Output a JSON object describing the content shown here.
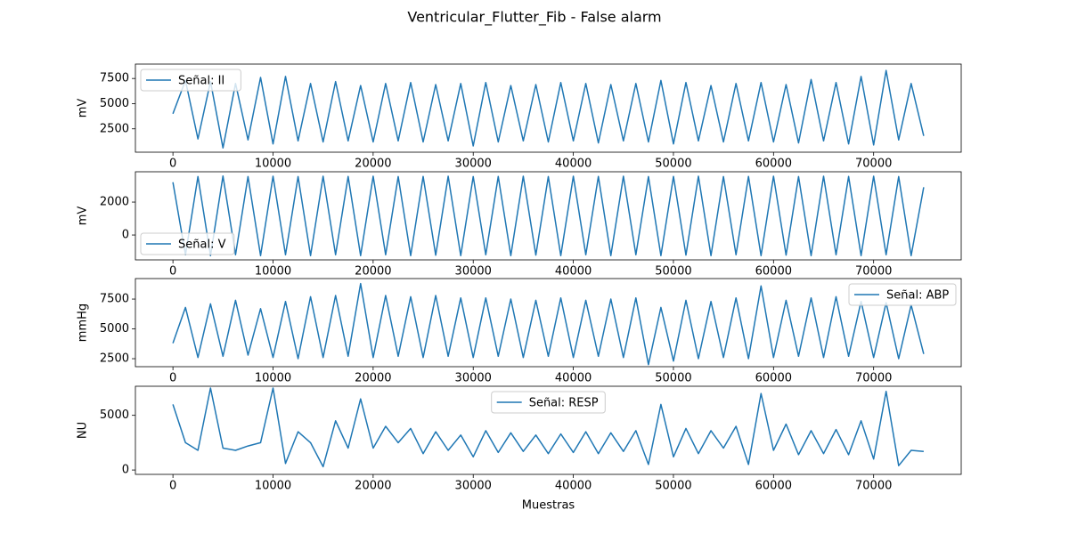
{
  "title": "Ventricular_Flutter_Fib - False alarm",
  "chart_data": [
    {
      "type": "line",
      "ylabel": "mV",
      "legend": "upper left",
      "grid": false,
      "xlim": [
        -3750,
        78750
      ],
      "xticks": [
        0,
        10000,
        20000,
        30000,
        40000,
        50000,
        60000,
        70000
      ],
      "ylim": [
        180,
        8930
      ],
      "yticks": [
        2500,
        5000,
        7500
      ],
      "x": [
        0,
        1250,
        2500,
        3750,
        5000,
        6250,
        7500,
        8750,
        10000,
        11250,
        12500,
        13750,
        15000,
        16250,
        17500,
        18750,
        20000,
        21250,
        22500,
        23750,
        25000,
        26250,
        27500,
        28750,
        30000,
        31250,
        32500,
        33750,
        35000,
        36250,
        37500,
        38750,
        40000,
        41250,
        42500,
        43750,
        45000,
        46250,
        47500,
        48750,
        50000,
        51250,
        52500,
        53750,
        55000,
        56250,
        57500,
        58750,
        60000,
        61250,
        62500,
        63750,
        65000,
        66250,
        67500,
        68750,
        70000,
        71250,
        72500,
        73750,
        75000
      ],
      "series": [
        {
          "name": "Señal: II",
          "color": "#1f77b4",
          "values": [
            4000,
            7300,
            1500,
            7200,
            600,
            7000,
            1400,
            7600,
            1000,
            7700,
            1300,
            7000,
            1200,
            7200,
            1300,
            6800,
            1200,
            7000,
            1300,
            7100,
            1200,
            6900,
            1300,
            7000,
            800,
            7100,
            1200,
            6800,
            1300,
            6900,
            1200,
            7100,
            1300,
            7000,
            1100,
            6900,
            1300,
            7000,
            1200,
            7300,
            1000,
            7100,
            1300,
            6800,
            1200,
            7000,
            1300,
            7100,
            1200,
            6900,
            1100,
            7400,
            1300,
            7100,
            1000,
            7700,
            900,
            8300,
            1400,
            7000,
            1800
          ]
        }
      ]
    },
    {
      "type": "line",
      "ylabel": "mV",
      "legend": "lower left",
      "grid": false,
      "xlim": [
        -3750,
        78750
      ],
      "xticks": [
        0,
        10000,
        20000,
        30000,
        40000,
        50000,
        60000,
        70000
      ],
      "ylim": [
        -1510,
        3840
      ],
      "yticks": [
        0,
        2000
      ],
      "x": [
        0,
        1250,
        2500,
        3750,
        5000,
        6250,
        7500,
        8750,
        10000,
        11250,
        12500,
        13750,
        15000,
        16250,
        17500,
        18750,
        20000,
        21250,
        22500,
        23750,
        25000,
        26250,
        27500,
        28750,
        30000,
        31250,
        32500,
        33750,
        35000,
        36250,
        37500,
        38750,
        40000,
        41250,
        42500,
        43750,
        45000,
        46250,
        47500,
        48750,
        50000,
        51250,
        52500,
        53750,
        55000,
        56250,
        57500,
        58750,
        60000,
        61250,
        62500,
        63750,
        65000,
        66250,
        67500,
        68750,
        70000,
        71250,
        72500,
        73750,
        75000
      ],
      "series": [
        {
          "name": "Señal: V",
          "color": "#1f77b4",
          "values": [
            3200,
            -1200,
            3550,
            -1250,
            3580,
            -1200,
            3550,
            -1250,
            3570,
            -1200,
            3550,
            -1250,
            3570,
            -1200,
            3560,
            -1250,
            3570,
            -1200,
            3550,
            -1250,
            3560,
            -1230,
            3570,
            -1250,
            3550,
            -1200,
            3560,
            -1250,
            3570,
            -1220,
            3550,
            -1250,
            3570,
            -1200,
            3560,
            -1250,
            3570,
            -1200,
            3550,
            -1250,
            3560,
            -1220,
            3570,
            -1250,
            3550,
            -1200,
            3560,
            -1250,
            3570,
            -1220,
            3550,
            -1250,
            3570,
            -1200,
            3560,
            -1250,
            3570,
            -1200,
            3550,
            -1250,
            2900
          ]
        }
      ]
    },
    {
      "type": "line",
      "ylabel": "mmHg",
      "legend": "upper right",
      "grid": false,
      "xlim": [
        -3750,
        78750
      ],
      "xticks": [
        0,
        10000,
        20000,
        30000,
        40000,
        50000,
        60000,
        70000
      ],
      "ylim": [
        1830,
        9220
      ],
      "yticks": [
        2500,
        5000,
        7500
      ],
      "x": [
        0,
        1250,
        2500,
        3750,
        5000,
        6250,
        7500,
        8750,
        10000,
        11250,
        12500,
        13750,
        15000,
        16250,
        17500,
        18750,
        20000,
        21250,
        22500,
        23750,
        25000,
        26250,
        27500,
        28750,
        30000,
        31250,
        32500,
        33750,
        35000,
        36250,
        37500,
        38750,
        40000,
        41250,
        42500,
        43750,
        45000,
        46250,
        47500,
        48750,
        50000,
        51250,
        52500,
        53750,
        55000,
        56250,
        57500,
        58750,
        60000,
        61250,
        62500,
        63750,
        65000,
        66250,
        67500,
        68750,
        70000,
        71250,
        72500,
        73750,
        75000
      ],
      "series": [
        {
          "name": "Señal: ABP",
          "color": "#1f77b4",
          "values": [
            3800,
            6800,
            2600,
            7100,
            2700,
            7400,
            2800,
            6700,
            2600,
            7300,
            2500,
            7700,
            2600,
            7800,
            2700,
            8800,
            2600,
            7800,
            2700,
            7700,
            2600,
            7800,
            2700,
            7600,
            2600,
            7600,
            2700,
            7500,
            2600,
            7400,
            2700,
            7600,
            2600,
            7400,
            2700,
            7500,
            2600,
            7600,
            2000,
            6800,
            2300,
            7400,
            2500,
            7300,
            2600,
            7600,
            2500,
            8600,
            2600,
            7400,
            2700,
            7600,
            2600,
            7700,
            2700,
            7300,
            2600,
            7200,
            2500,
            7000,
            2900
          ]
        }
      ]
    },
    {
      "type": "line",
      "ylabel": "NU",
      "xlabel": "Muestras",
      "legend": "upper center",
      "grid": false,
      "xlim": [
        -3750,
        78750
      ],
      "xticks": [
        0,
        10000,
        20000,
        30000,
        40000,
        50000,
        60000,
        70000
      ],
      "ylim": [
        -400,
        7660
      ],
      "yticks": [
        0,
        5000
      ],
      "x": [
        0,
        1250,
        2500,
        3750,
        5000,
        6250,
        7500,
        8750,
        10000,
        11250,
        12500,
        13750,
        15000,
        16250,
        17500,
        18750,
        20000,
        21250,
        22500,
        23750,
        25000,
        26250,
        27500,
        28750,
        30000,
        31250,
        32500,
        33750,
        35000,
        36250,
        37500,
        38750,
        40000,
        41250,
        42500,
        43750,
        45000,
        46250,
        47500,
        48750,
        50000,
        51250,
        52500,
        53750,
        55000,
        56250,
        57500,
        58750,
        60000,
        61250,
        62500,
        63750,
        65000,
        66250,
        67500,
        68750,
        70000,
        71250,
        72500,
        73750,
        75000
      ],
      "series": [
        {
          "name": "Señal: RESP",
          "color": "#1f77b4",
          "values": [
            6000,
            2500,
            1800,
            7500,
            2000,
            1800,
            2200,
            2500,
            7500,
            600,
            3500,
            2500,
            300,
            4500,
            2000,
            6500,
            2000,
            4000,
            2500,
            3800,
            1500,
            3500,
            1800,
            3200,
            1200,
            3600,
            1600,
            3400,
            1700,
            3200,
            1500,
            3300,
            1600,
            3500,
            1500,
            3400,
            1700,
            3600,
            500,
            6000,
            1200,
            3800,
            1500,
            3600,
            2000,
            4000,
            500,
            7000,
            1800,
            4200,
            1400,
            3600,
            1500,
            3700,
            1400,
            4500,
            1000,
            7200,
            400,
            1800,
            1700
          ]
        }
      ]
    }
  ]
}
